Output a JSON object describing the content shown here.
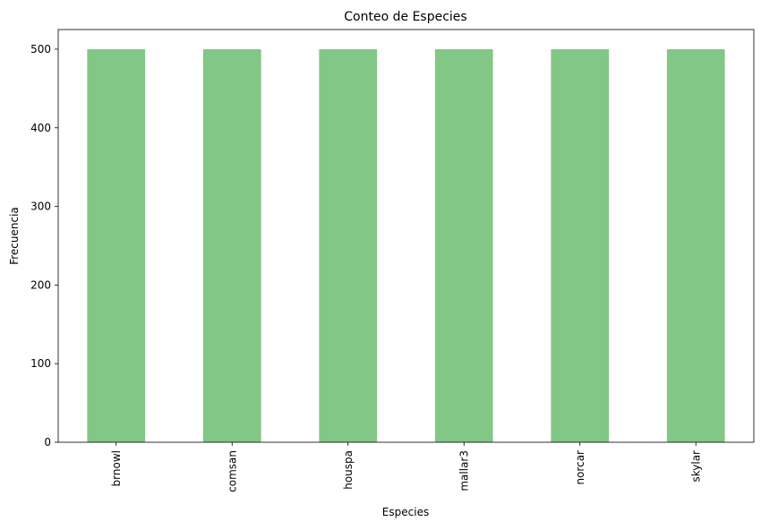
{
  "chart_data": {
    "type": "bar",
    "title": "Conteo de Especies",
    "xlabel": "Especies",
    "ylabel": "Frecuencia",
    "categories": [
      "brnowl",
      "comsan",
      "houspa",
      "mallar3",
      "norcar",
      "skylar"
    ],
    "values": [
      500,
      500,
      500,
      500,
      500,
      500
    ],
    "ylim": [
      0,
      525
    ],
    "yticks": [
      "0",
      "100",
      "200",
      "300",
      "400",
      "500"
    ],
    "bar_color": "#82c785",
    "grid": false,
    "legend": "none"
  }
}
